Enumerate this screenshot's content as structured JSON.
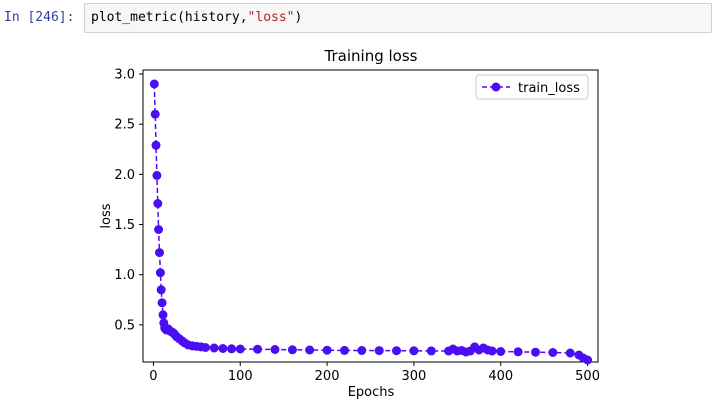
{
  "cell": {
    "prompt": "In [246]:",
    "code_fn": "plot_metric",
    "code_open": "(",
    "code_args": "history,",
    "code_str": "\"loss\"",
    "code_close": ")"
  },
  "chart_data": {
    "type": "line",
    "title": "Training loss",
    "xlabel": "Epochs",
    "ylabel": "loss",
    "xlim": [
      -12,
      512
    ],
    "ylim": [
      0.13,
      3.04
    ],
    "xticks": [
      0,
      100,
      200,
      300,
      400,
      500
    ],
    "yticks": [
      0.5,
      1.0,
      1.5,
      2.0,
      2.5,
      3.0
    ],
    "ytick_labels": [
      "0.5",
      "1.0",
      "1.5",
      "2.0",
      "2.5",
      "3.0"
    ],
    "legend_position": "top-right",
    "grid": false,
    "series": [
      {
        "name": "train_loss",
        "color": "#4b0df2",
        "style": "dashed-line-with-circle-markers",
        "x": [
          1,
          2,
          3,
          4,
          5,
          6,
          7,
          8,
          9,
          10,
          11,
          12,
          13,
          14,
          15,
          17,
          19,
          21,
          23,
          25,
          27,
          30,
          33,
          36,
          40,
          45,
          50,
          55,
          60,
          70,
          80,
          90,
          100,
          120,
          140,
          160,
          180,
          200,
          220,
          240,
          260,
          280,
          300,
          320,
          340,
          345,
          350,
          355,
          360,
          365,
          370,
          375,
          380,
          385,
          390,
          400,
          420,
          440,
          460,
          480,
          490,
          495,
          500
        ],
        "y": [
          2.9,
          2.6,
          2.29,
          1.99,
          1.71,
          1.45,
          1.22,
          1.02,
          0.85,
          0.72,
          0.6,
          0.52,
          0.47,
          0.46,
          0.45,
          0.46,
          0.44,
          0.43,
          0.42,
          0.4,
          0.38,
          0.36,
          0.34,
          0.32,
          0.3,
          0.29,
          0.285,
          0.28,
          0.275,
          0.27,
          0.265,
          0.262,
          0.26,
          0.258,
          0.255,
          0.252,
          0.25,
          0.248,
          0.246,
          0.245,
          0.244,
          0.243,
          0.242,
          0.241,
          0.24,
          0.26,
          0.24,
          0.245,
          0.23,
          0.24,
          0.28,
          0.25,
          0.27,
          0.25,
          0.24,
          0.235,
          0.232,
          0.228,
          0.225,
          0.22,
          0.2,
          0.17,
          0.15
        ]
      }
    ]
  }
}
